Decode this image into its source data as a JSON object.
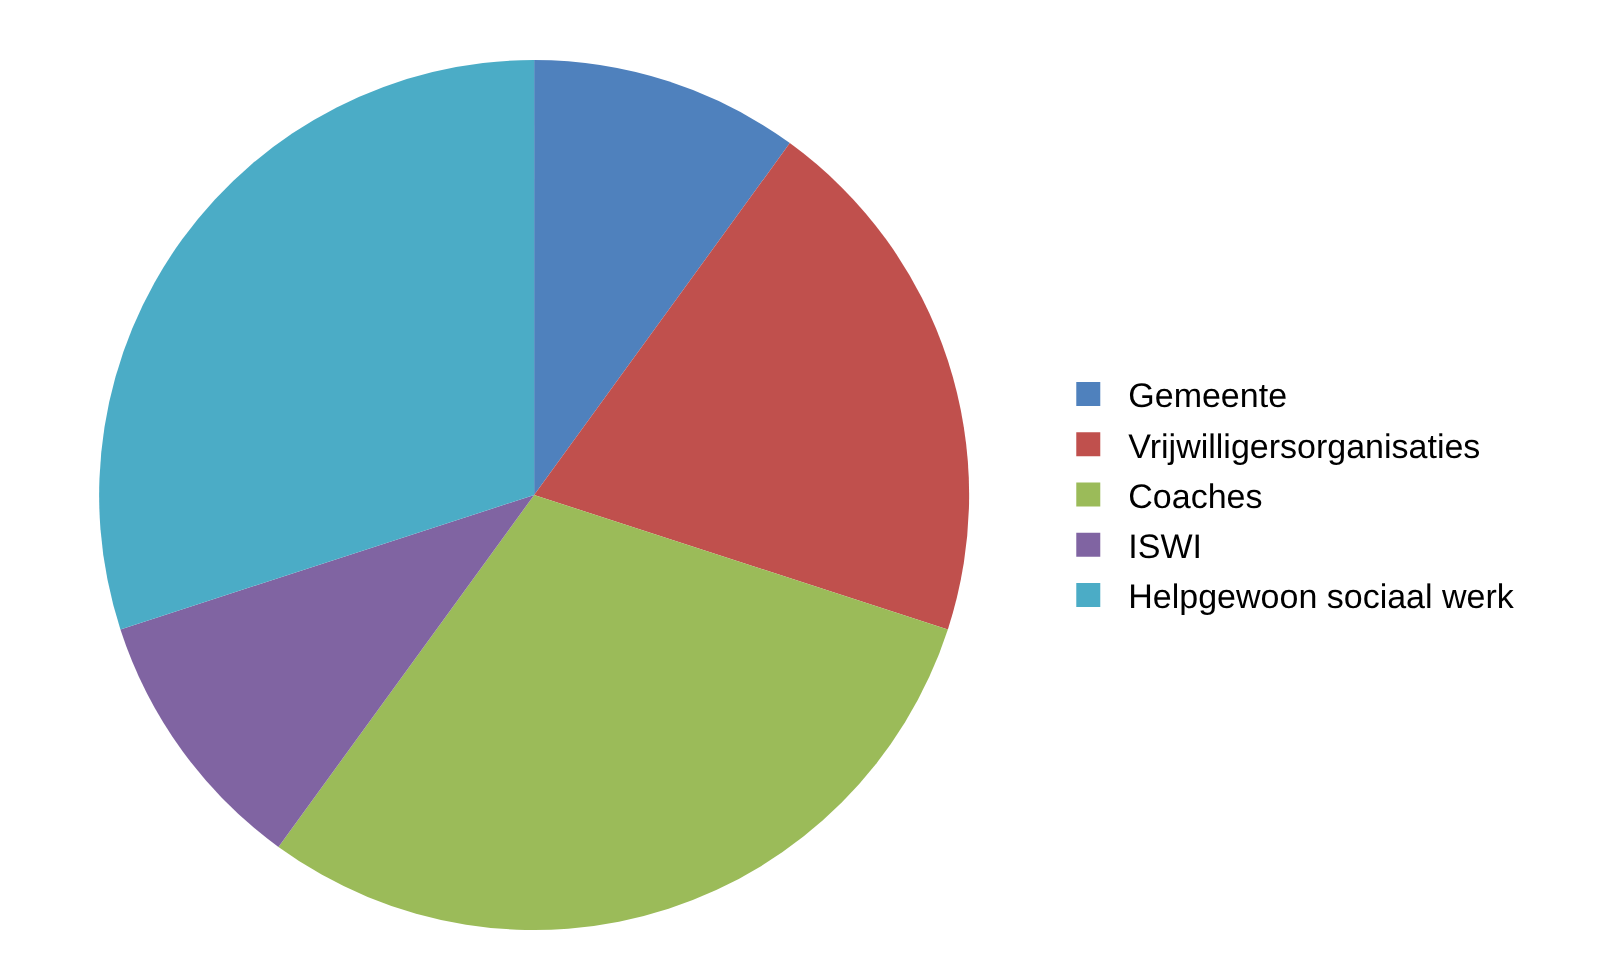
{
  "chart_data": {
    "type": "pie",
    "categories": [
      "Gemeente",
      "Vrijwilligersorganisaties",
      "Coaches",
      "ISWI",
      "Helpgewoon sociaal werk"
    ],
    "values": [
      10,
      20,
      30,
      10,
      30
    ],
    "colors": [
      "#4f81bd",
      "#c0504d",
      "#9bbb59",
      "#8064a2",
      "#4bacc6"
    ],
    "legend": "right"
  }
}
